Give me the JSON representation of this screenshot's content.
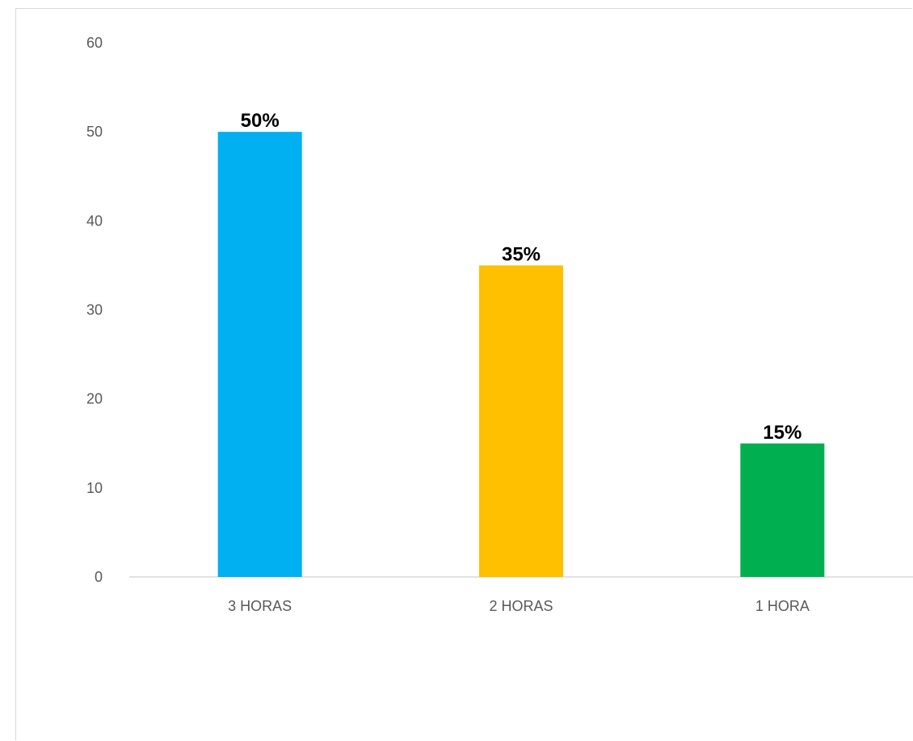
{
  "chart_data": {
    "type": "bar",
    "categories": [
      "3 HORAS",
      "2 HORAS",
      "1 HORA"
    ],
    "values": [
      50,
      35,
      15
    ],
    "data_labels": [
      "50%",
      "35%",
      "15%"
    ],
    "colors": [
      "#00b0f0",
      "#ffc000",
      "#00b050"
    ],
    "ylim": [
      0,
      60
    ],
    "yticks": [
      0,
      10,
      20,
      30,
      40,
      50,
      60
    ],
    "grid": false,
    "legend": "none",
    "title": "",
    "xlabel": "",
    "ylabel": ""
  }
}
